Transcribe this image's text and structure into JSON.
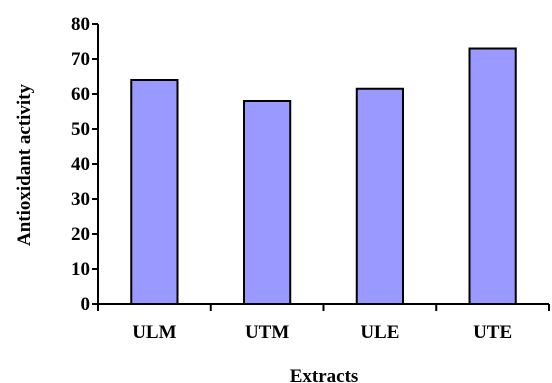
{
  "chart_data": {
    "type": "bar",
    "categories": [
      "ULM",
      "UTM",
      "ULE",
      "UTE"
    ],
    "values": [
      64,
      58,
      61.5,
      73
    ],
    "xlabel": "Extracts",
    "ylabel": "Antioxidant activity",
    "ylim": [
      0,
      80
    ],
    "yticks": [
      "0",
      "10",
      "20",
      "30",
      "40",
      "50",
      "60",
      "70",
      "80"
    ],
    "grid": false,
    "bar_color": "#9999ff",
    "bar_edge_color": "#000000"
  }
}
